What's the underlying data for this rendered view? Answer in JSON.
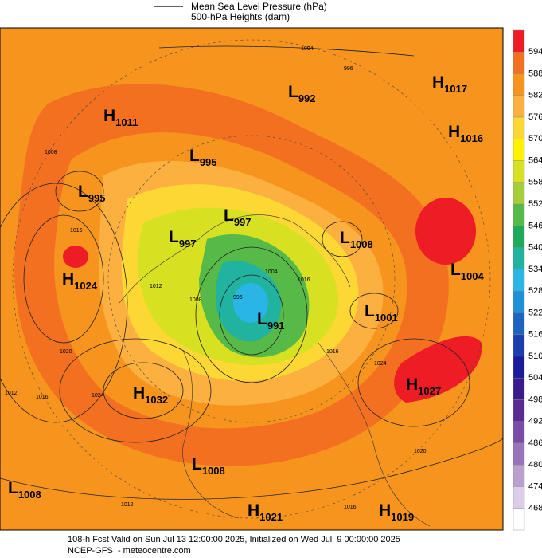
{
  "header": {
    "line_legend": "Mean Sea Level Pressure (hPa)",
    "fill_legend": "500-hPa Heights (dam)"
  },
  "colorbar": {
    "levels": [
      594,
      588,
      582,
      576,
      570,
      564,
      558,
      552,
      546,
      540,
      534,
      528,
      522,
      516,
      510,
      504,
      498,
      492,
      486,
      480,
      474,
      468
    ],
    "colors": [
      "#ee1c25",
      "#f37021",
      "#f7941d",
      "#fbb040",
      "#fdd835",
      "#fff200",
      "#d7e021",
      "#a6ce39",
      "#57b947",
      "#1fa95a",
      "#21b3a0",
      "#29b6e6",
      "#1e90d6",
      "#1f63c0",
      "#1d3fae",
      "#1a1a9a",
      "#3b1a8c",
      "#5a2c91",
      "#7a4ca5",
      "#9a74bb",
      "#b9a0d0",
      "#dacde9",
      "#ffffff"
    ]
  },
  "pressure_centers": [
    {
      "type": "H",
      "value": "1011"
    },
    {
      "type": "H",
      "value": "1017"
    },
    {
      "type": "L",
      "value": "992"
    },
    {
      "type": "H",
      "value": "1016"
    },
    {
      "type": "L",
      "value": "995"
    },
    {
      "type": "L",
      "value": "995"
    },
    {
      "type": "L",
      "value": "997"
    },
    {
      "type": "L",
      "value": "997"
    },
    {
      "type": "L",
      "value": "1008"
    },
    {
      "type": "H",
      "value": "1024"
    },
    {
      "type": "L",
      "value": "1004"
    },
    {
      "type": "L",
      "value": "991"
    },
    {
      "type": "L",
      "value": "1001"
    },
    {
      "type": "H",
      "value": "1032"
    },
    {
      "type": "H",
      "value": "1027"
    },
    {
      "type": "L",
      "value": "1008"
    },
    {
      "type": "L",
      "value": "1008"
    },
    {
      "type": "H",
      "value": "1021"
    },
    {
      "type": "H",
      "value": "1019"
    }
  ],
  "isobar_labels": [
    "1004",
    "996",
    "1008",
    "1016",
    "1012",
    "1008",
    "996",
    "1004",
    "1016",
    "1016",
    "1024",
    "1012",
    "1016",
    "1020",
    "1024",
    "1012",
    "1020",
    "1016"
  ],
  "footer": {
    "line1": "108-h Fcst Valid on Sun Jul 13 12:00:00 2025, Initialized on Wed Jul  9 00:00:00 2025",
    "line2": "NCEP-GFS  - meteocentre.com"
  }
}
